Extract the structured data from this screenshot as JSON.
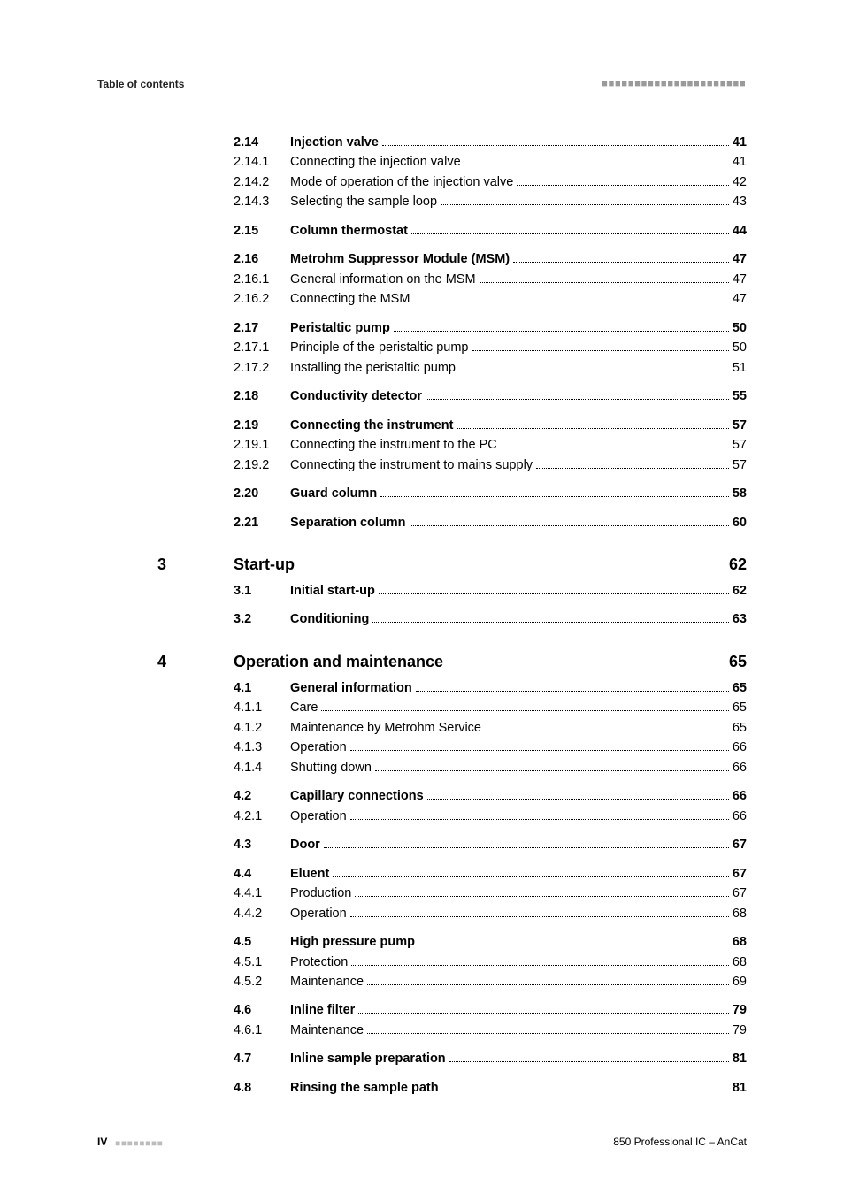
{
  "header": {
    "left": "Table of contents",
    "dashes": "■■■■■■■■■■■■■■■■■■■■■■"
  },
  "pre_sections": [
    {
      "gap": true,
      "entries": [
        {
          "num": "2.14",
          "title": "Injection valve",
          "page": "41",
          "bold": true
        },
        {
          "num": "2.14.1",
          "title": "Connecting the injection valve",
          "page": "41"
        },
        {
          "num": "2.14.2",
          "title": "Mode of operation of the injection valve",
          "page": "42"
        },
        {
          "num": "2.14.3",
          "title": "Selecting the sample loop",
          "page": "43"
        }
      ]
    },
    {
      "gap": true,
      "entries": [
        {
          "num": "2.15",
          "title": "Column thermostat",
          "page": "44",
          "bold": true
        }
      ]
    },
    {
      "gap": true,
      "entries": [
        {
          "num": "2.16",
          "title": "Metrohm Suppressor Module (MSM)",
          "page": "47",
          "bold": true
        },
        {
          "num": "2.16.1",
          "title": "General information on the MSM",
          "page": "47"
        },
        {
          "num": "2.16.2",
          "title": "Connecting the MSM",
          "page": "47"
        }
      ]
    },
    {
      "gap": true,
      "entries": [
        {
          "num": "2.17",
          "title": "Peristaltic pump",
          "page": "50",
          "bold": true
        },
        {
          "num": "2.17.1",
          "title": "Principle of the peristaltic pump",
          "page": "50"
        },
        {
          "num": "2.17.2",
          "title": "Installing the peristaltic pump",
          "page": "51"
        }
      ]
    },
    {
      "gap": true,
      "entries": [
        {
          "num": "2.18",
          "title": "Conductivity detector",
          "page": "55",
          "bold": true
        }
      ]
    },
    {
      "gap": true,
      "entries": [
        {
          "num": "2.19",
          "title": "Connecting the instrument",
          "page": "57",
          "bold": true
        },
        {
          "num": "2.19.1",
          "title": "Connecting the instrument to the PC",
          "page": "57"
        },
        {
          "num": "2.19.2",
          "title": "Connecting the instrument to mains supply",
          "page": "57"
        }
      ]
    },
    {
      "gap": true,
      "entries": [
        {
          "num": "2.20",
          "title": "Guard column",
          "page": "58",
          "bold": true
        }
      ]
    },
    {
      "gap": true,
      "entries": [
        {
          "num": "2.21",
          "title": "Separation column",
          "page": "60",
          "bold": true
        }
      ]
    }
  ],
  "sections": [
    {
      "chapter": "3",
      "title": "Start-up",
      "page": "62",
      "groups": [
        {
          "gap": false,
          "entries": [
            {
              "num": "3.1",
              "title": "Initial start-up",
              "page": "62",
              "bold": true
            }
          ]
        },
        {
          "gap": true,
          "entries": [
            {
              "num": "3.2",
              "title": "Conditioning",
              "page": "63",
              "bold": true
            }
          ]
        }
      ]
    },
    {
      "chapter": "4",
      "title": "Operation and maintenance",
      "page": "65",
      "groups": [
        {
          "gap": false,
          "entries": [
            {
              "num": "4.1",
              "title": "General information",
              "page": "65",
              "bold": true
            },
            {
              "num": "4.1.1",
              "title": "Care",
              "page": "65"
            },
            {
              "num": "4.1.2",
              "title": "Maintenance by Metrohm Service",
              "page": "65"
            },
            {
              "num": "4.1.3",
              "title": "Operation",
              "page": "66"
            },
            {
              "num": "4.1.4",
              "title": "Shutting down",
              "page": "66"
            }
          ]
        },
        {
          "gap": true,
          "entries": [
            {
              "num": "4.2",
              "title": "Capillary connections",
              "page": "66",
              "bold": true
            },
            {
              "num": "4.2.1",
              "title": "Operation",
              "page": "66"
            }
          ]
        },
        {
          "gap": true,
          "entries": [
            {
              "num": "4.3",
              "title": "Door",
              "page": "67",
              "bold": true
            }
          ]
        },
        {
          "gap": true,
          "entries": [
            {
              "num": "4.4",
              "title": "Eluent",
              "page": "67",
              "bold": true
            },
            {
              "num": "4.4.1",
              "title": "Production",
              "page": "67"
            },
            {
              "num": "4.4.2",
              "title": "Operation",
              "page": "68"
            }
          ]
        },
        {
          "gap": true,
          "entries": [
            {
              "num": "4.5",
              "title": "High pressure pump",
              "page": "68",
              "bold": true
            },
            {
              "num": "4.5.1",
              "title": "Protection",
              "page": "68"
            },
            {
              "num": "4.5.2",
              "title": "Maintenance",
              "page": "69"
            }
          ]
        },
        {
          "gap": true,
          "entries": [
            {
              "num": "4.6",
              "title": "Inline filter",
              "page": "79",
              "bold": true
            },
            {
              "num": "4.6.1",
              "title": "Maintenance",
              "page": "79"
            }
          ]
        },
        {
          "gap": true,
          "entries": [
            {
              "num": "4.7",
              "title": "Inline sample preparation",
              "page": "81",
              "bold": true
            }
          ]
        },
        {
          "gap": true,
          "entries": [
            {
              "num": "4.8",
              "title": "Rinsing the sample path",
              "page": "81",
              "bold": true
            }
          ]
        }
      ]
    }
  ],
  "footer": {
    "page_roman": "IV",
    "dashes": "■■■■■■■■",
    "doc": "850 Professional IC – AnCat"
  }
}
